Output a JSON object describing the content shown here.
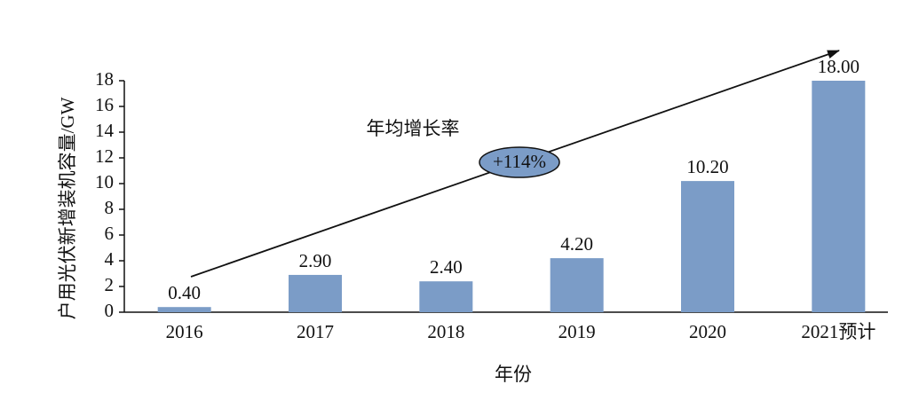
{
  "chart_data": {
    "type": "bar",
    "y_label": "户用光伏新增装机容量/GW",
    "x_label": "年份",
    "categories": [
      "2016",
      "2017",
      "2018",
      "2019",
      "2020",
      "2021预计"
    ],
    "values": [
      0.4,
      2.9,
      2.4,
      4.2,
      10.2,
      18
    ],
    "value_labels": [
      "0.40",
      "2.90",
      "2.40",
      "4.20",
      "10.20",
      "18.00"
    ],
    "color": "#7b9cc7",
    "ylim": [
      0,
      18
    ],
    "yticks": [
      0,
      2,
      4,
      6,
      8,
      10,
      12,
      14,
      16,
      18
    ],
    "grid": false,
    "annotations": {
      "trend_label": "年均增长率",
      "growth_rate": "+114%"
    }
  }
}
